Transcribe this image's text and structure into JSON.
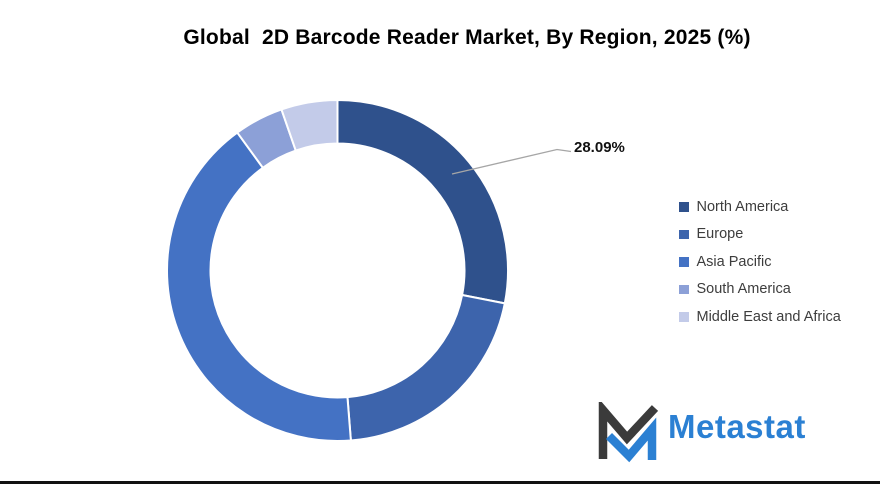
{
  "chart_data": {
    "type": "pie",
    "subtype": "donut",
    "title": "Global  2D Barcode Reader Market, By Region, 2025 (%)",
    "categories": [
      "North America",
      "Europe",
      "Asia Pacific",
      "South America",
      "Middle East and Africa"
    ],
    "values": [
      28.09,
      20.66,
      41.25,
      4.67,
      5.33
    ],
    "value_labels_shown": [
      "28.09%",
      "",
      "",
      "",
      ""
    ],
    "colors": [
      "#2F518C",
      "#3D64AC",
      "#4472C4",
      "#8CA0D7",
      "#C3CBE9"
    ],
    "unit": "%",
    "legend_position": "right",
    "start_angle_deg": 0,
    "direction": "clockwise",
    "donut_hole_ratio": 0.75,
    "leader_line_color": "#a6a6a6",
    "slice_border_color": "#ffffff"
  },
  "logo": {
    "text": "Metastat",
    "icon_dark_color": "#3b3b3b",
    "icon_blue_color": "#2b80d3"
  }
}
